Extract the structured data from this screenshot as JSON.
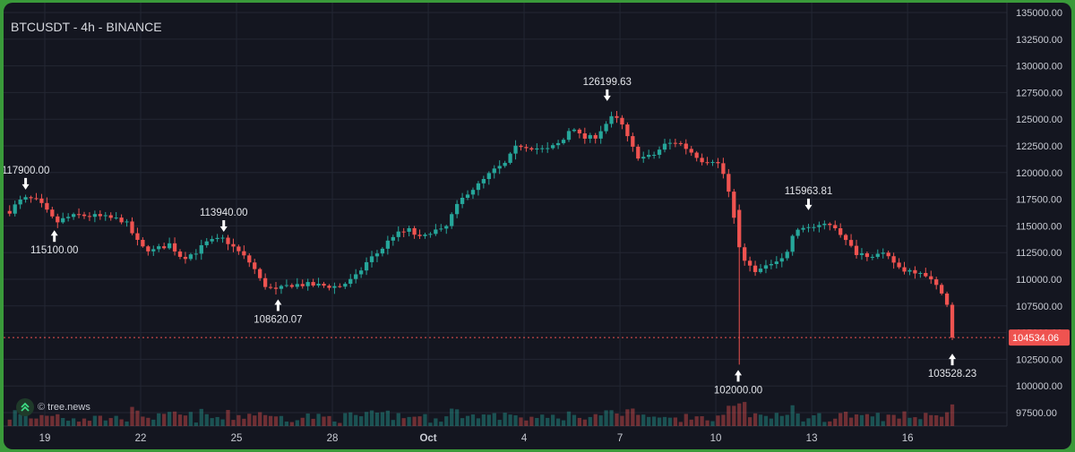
{
  "header": {
    "title": "BTCUSDT - 4h - BINANCE"
  },
  "branding": {
    "copyright": "©",
    "site": "tree.news"
  },
  "colors": {
    "up": "#26a69a",
    "down": "#ef5350",
    "background": "#141620",
    "grid": "#232733",
    "text": "#d6d8de",
    "price_line": "#ef5350"
  },
  "chart_data": {
    "type": "candlestick",
    "ylim": [
      97500,
      135000
    ],
    "y_ticks": [
      "135000.00",
      "132500.00",
      "130000.00",
      "127500.00",
      "125000.00",
      "122500.00",
      "120000.00",
      "117500.00",
      "115000.00",
      "112500.00",
      "110000.00",
      "107500.00",
      "105000.00",
      "102500.00",
      "100000.00",
      "97500.00"
    ],
    "x_ticks": [
      {
        "label": "19",
        "day": 19
      },
      {
        "label": "22",
        "day": 22
      },
      {
        "label": "25",
        "day": 25
      },
      {
        "label": "28",
        "day": 28
      },
      {
        "label": "Oct",
        "day": 31
      },
      {
        "label": "4",
        "day": 34
      },
      {
        "label": "7",
        "day": 37
      },
      {
        "label": "10",
        "day": 40
      },
      {
        "label": "13",
        "day": 43
      },
      {
        "label": "16",
        "day": 46
      }
    ],
    "current_price": "104534.06",
    "annotations": [
      {
        "label": "117900.00",
        "day": 18.4,
        "price": 117900,
        "kind": "high"
      },
      {
        "label": "115100.00",
        "day": 19.3,
        "price": 115100,
        "kind": "low"
      },
      {
        "label": "113940.00",
        "day": 24.6,
        "price": 113940,
        "kind": "high"
      },
      {
        "label": "108620.07",
        "day": 26.3,
        "price": 108620,
        "kind": "low"
      },
      {
        "label": "126199.63",
        "day": 36.6,
        "price": 126200,
        "kind": "high"
      },
      {
        "label": "102000.00",
        "day": 40.7,
        "price": 102000,
        "kind": "low"
      },
      {
        "label": "115963.81",
        "day": 42.9,
        "price": 115964,
        "kind": "high"
      },
      {
        "label": "103528.23",
        "day": 47.4,
        "price": 103528,
        "kind": "low"
      }
    ],
    "close_path": [
      [
        17.9,
        116400
      ],
      [
        18.2,
        117300
      ],
      [
        18.45,
        117600
      ],
      [
        18.8,
        117300
      ],
      [
        19.1,
        116200
      ],
      [
        19.35,
        115300
      ],
      [
        19.7,
        115800
      ],
      [
        20.1,
        116000
      ],
      [
        20.6,
        115900
      ],
      [
        21.1,
        115700
      ],
      [
        21.5,
        115500
      ],
      [
        21.7,
        114500
      ],
      [
        22.0,
        113000
      ],
      [
        22.4,
        112700
      ],
      [
        22.9,
        113300
      ],
      [
        23.3,
        112000
      ],
      [
        23.7,
        112500
      ],
      [
        24.1,
        113500
      ],
      [
        24.6,
        113800
      ],
      [
        24.9,
        113000
      ],
      [
        25.2,
        112200
      ],
      [
        25.5,
        111300
      ],
      [
        25.8,
        109600
      ],
      [
        26.2,
        108900
      ],
      [
        26.7,
        109500
      ],
      [
        27.2,
        109500
      ],
      [
        27.7,
        109400
      ],
      [
        28.2,
        109300
      ],
      [
        28.7,
        110100
      ],
      [
        29.1,
        111700
      ],
      [
        29.5,
        112700
      ],
      [
        29.9,
        114100
      ],
      [
        30.4,
        114600
      ],
      [
        30.8,
        113700
      ],
      [
        31.1,
        114600
      ],
      [
        31.5,
        114500
      ],
      [
        31.8,
        116400
      ],
      [
        32.2,
        118100
      ],
      [
        32.6,
        118900
      ],
      [
        33.0,
        120100
      ],
      [
        33.4,
        120800
      ],
      [
        33.8,
        122600
      ],
      [
        34.2,
        122400
      ],
      [
        34.7,
        122100
      ],
      [
        35.2,
        122900
      ],
      [
        35.5,
        124500
      ],
      [
        35.8,
        123200
      ],
      [
        36.2,
        123300
      ],
      [
        36.6,
        124700
      ],
      [
        36.8,
        125300
      ],
      [
        37.1,
        124300
      ],
      [
        37.3,
        122700
      ],
      [
        37.6,
        121400
      ],
      [
        38.0,
        121500
      ],
      [
        38.4,
        122600
      ],
      [
        38.8,
        122900
      ],
      [
        39.2,
        122000
      ],
      [
        39.6,
        121100
      ],
      [
        40.0,
        121200
      ],
      [
        40.3,
        119500
      ],
      [
        40.5,
        116800
      ],
      [
        40.7,
        113000
      ],
      [
        41.0,
        111300
      ],
      [
        41.3,
        110800
      ],
      [
        41.6,
        111100
      ],
      [
        41.8,
        111800
      ],
      [
        42.2,
        112200
      ],
      [
        42.4,
        114100
      ],
      [
        42.8,
        115000
      ],
      [
        43.2,
        114800
      ],
      [
        43.5,
        115300
      ],
      [
        43.8,
        114800
      ],
      [
        44.1,
        113400
      ],
      [
        44.4,
        112500
      ],
      [
        44.8,
        112300
      ],
      [
        45.2,
        112300
      ],
      [
        45.5,
        111800
      ],
      [
        45.8,
        110900
      ],
      [
        46.2,
        110800
      ],
      [
        46.5,
        110700
      ],
      [
        46.9,
        109300
      ],
      [
        47.2,
        108600
      ],
      [
        47.3,
        105600
      ],
      [
        47.45,
        104534
      ]
    ]
  }
}
